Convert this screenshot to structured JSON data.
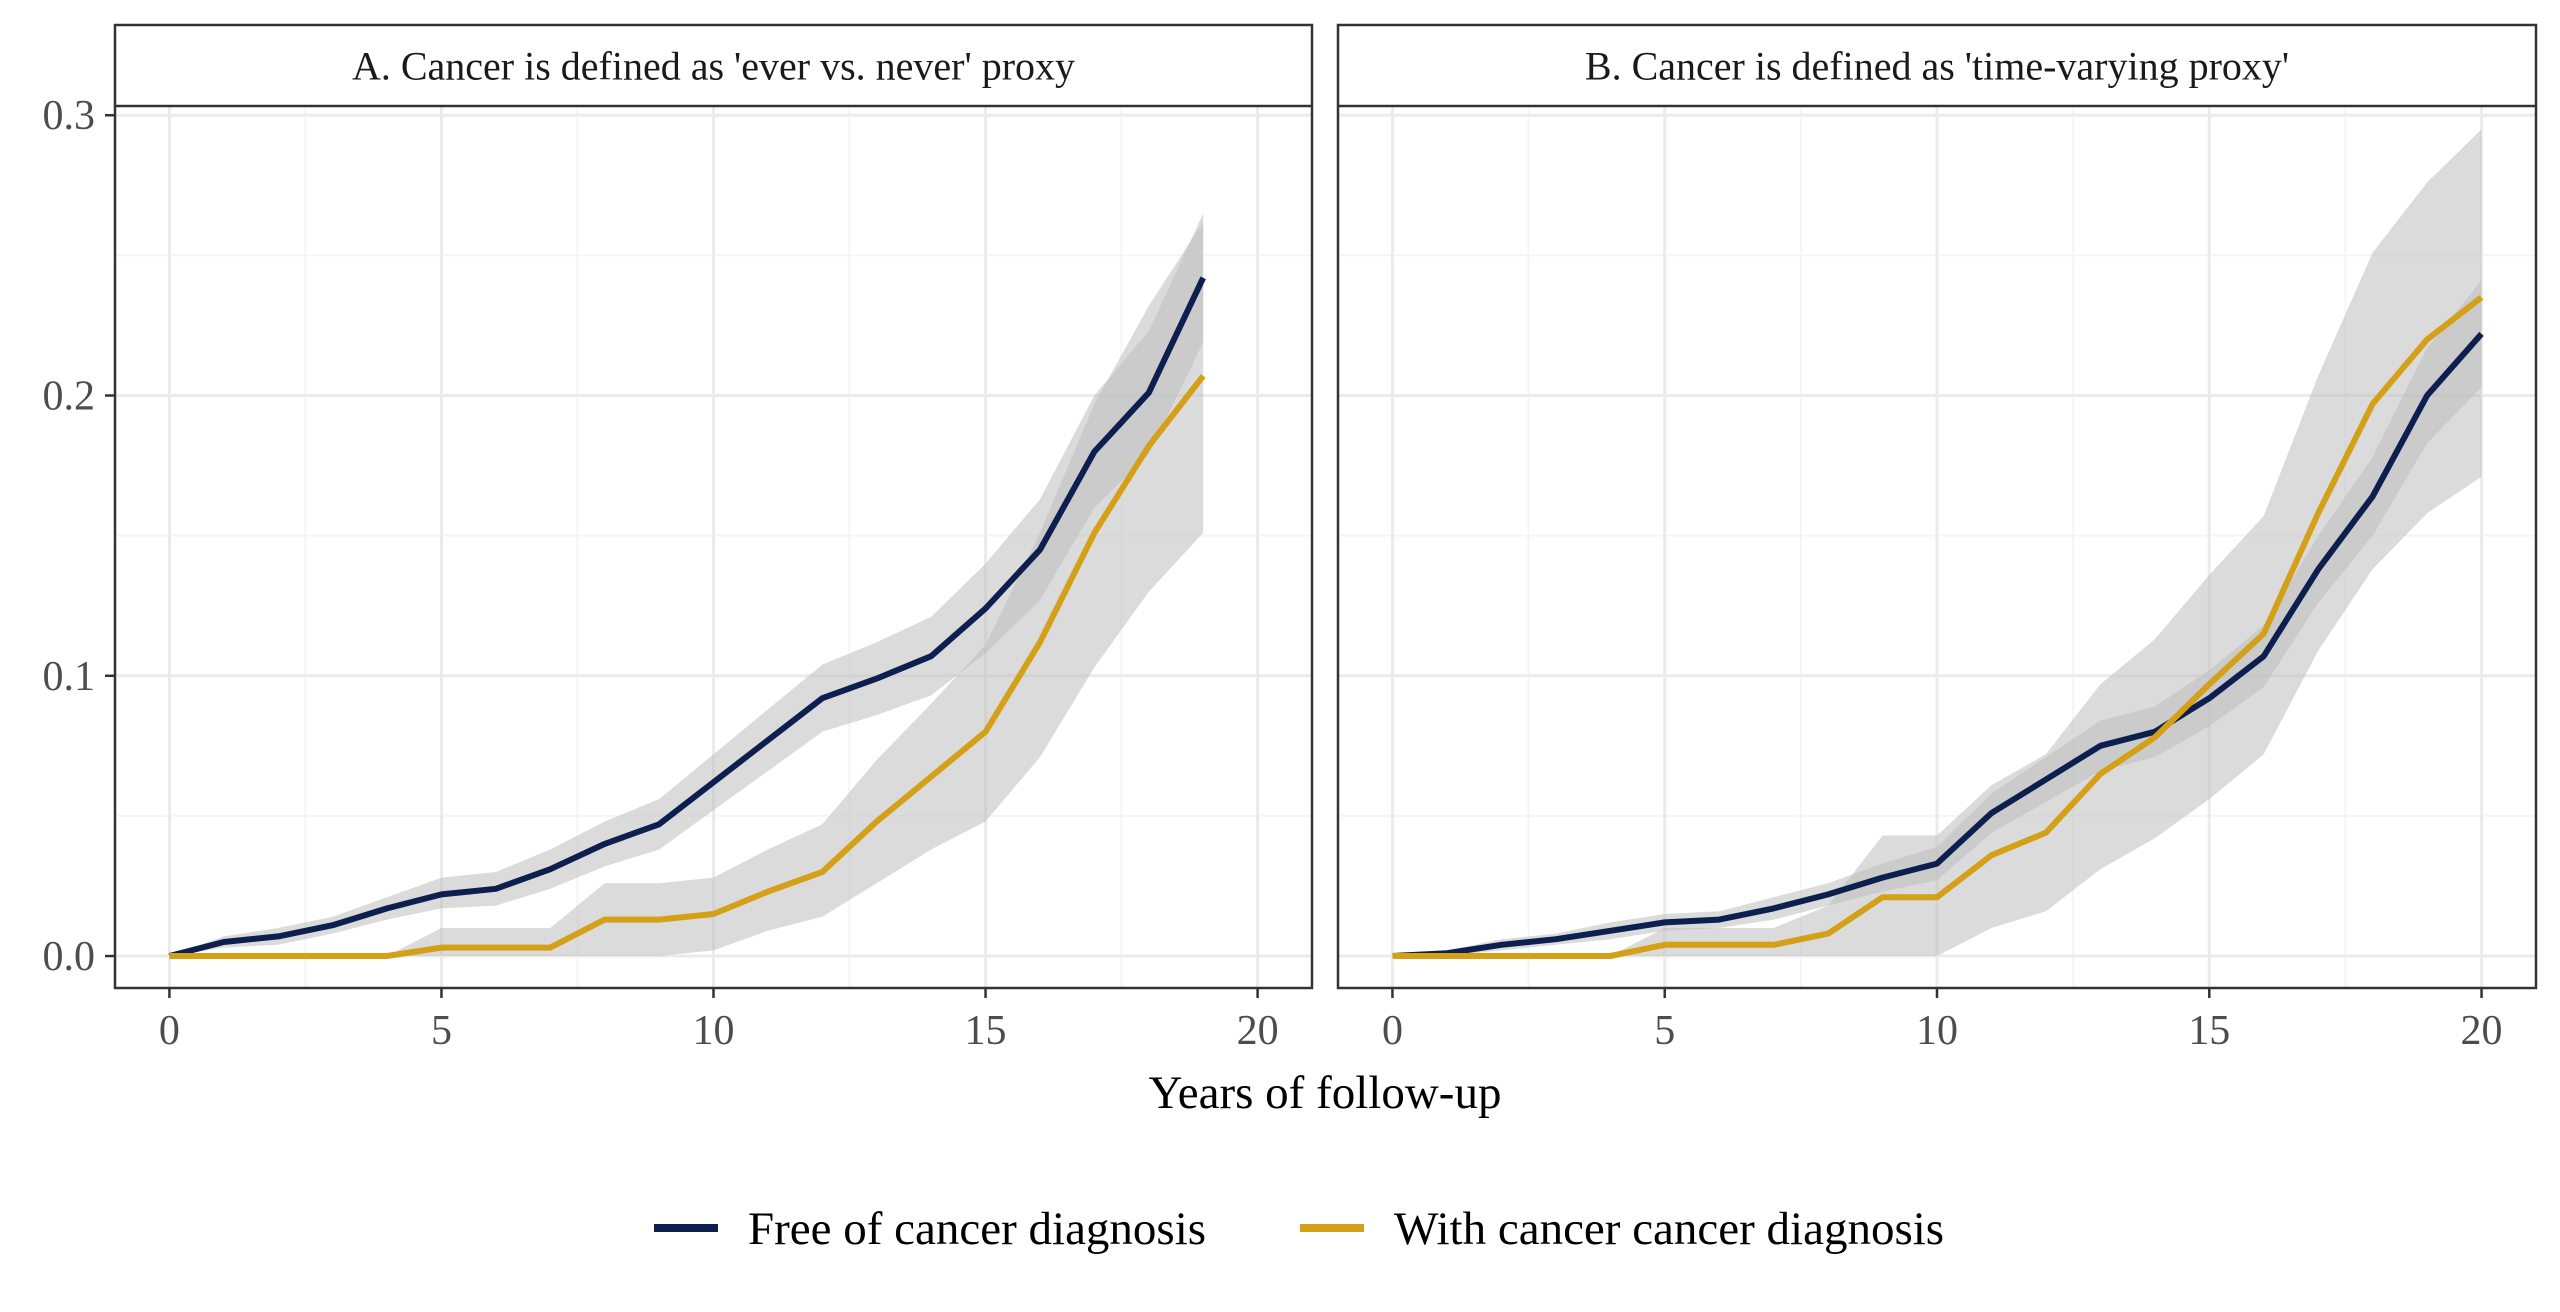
{
  "figure": {
    "xlabel": "Years of follow-up",
    "ylabel": ""
  },
  "legend": {
    "position": "bottom",
    "items": [
      {
        "label": "Free of cancer diagnosis",
        "color": "#0d1f4e"
      },
      {
        "label": "With cancer cancer diagnosis",
        "color": "#d4a017"
      }
    ]
  },
  "colors": {
    "band": "#bdbdbd",
    "grid_major": "#ebebeb",
    "grid_minor": "#f5f5f5",
    "strip_bg": "#ffffff",
    "panel_border": "#333333"
  },
  "chart_data": [
    {
      "type": "line",
      "title": "A. Cancer is defined as 'ever vs. never' proxy",
      "xlim": [
        0,
        20
      ],
      "ylim": [
        0,
        0.3
      ],
      "xticks": [
        "0",
        "5",
        "10",
        "15",
        "20"
      ],
      "yticks": [
        "0.0",
        "0.1",
        "0.2",
        "0.3"
      ],
      "grid": true,
      "series": [
        {
          "name": "Free of cancer diagnosis",
          "x": [
            0,
            1,
            2,
            3,
            4,
            5,
            6,
            7,
            8,
            9,
            10,
            11,
            12,
            13,
            14,
            15,
            16,
            17,
            18,
            19
          ],
          "y": [
            0,
            0.005,
            0.007,
            0.011,
            0.017,
            0.022,
            0.024,
            0.031,
            0.04,
            0.047,
            0.062,
            0.077,
            0.092,
            0.099,
            0.107,
            0.124,
            0.145,
            0.18,
            0.201,
            0.242
          ],
          "lower": [
            0,
            0.003,
            0.004,
            0.008,
            0.013,
            0.017,
            0.018,
            0.024,
            0.032,
            0.038,
            0.052,
            0.066,
            0.08,
            0.086,
            0.093,
            0.108,
            0.127,
            0.16,
            0.179,
            0.219
          ],
          "upper": [
            0,
            0.007,
            0.01,
            0.014,
            0.021,
            0.028,
            0.03,
            0.038,
            0.048,
            0.056,
            0.072,
            0.088,
            0.104,
            0.112,
            0.121,
            0.14,
            0.163,
            0.2,
            0.223,
            0.265
          ]
        },
        {
          "name": "With cancer cancer diagnosis",
          "x": [
            0,
            1,
            2,
            3,
            4,
            5,
            6,
            7,
            8,
            9,
            10,
            11,
            12,
            13,
            14,
            15,
            16,
            17,
            18,
            19
          ],
          "y": [
            0,
            0,
            0,
            0,
            0,
            0.003,
            0.003,
            0.003,
            0.013,
            0.013,
            0.015,
            0.023,
            0.03,
            0.048,
            0.064,
            0.08,
            0.112,
            0.151,
            0.182,
            0.207
          ],
          "lower": [
            0,
            0,
            0,
            0,
            0,
            0,
            0,
            0,
            0,
            0,
            0.002,
            0.009,
            0.014,
            0.026,
            0.038,
            0.048,
            0.071,
            0.103,
            0.13,
            0.151
          ],
          "upper": [
            0,
            0,
            0,
            0,
            0,
            0.01,
            0.01,
            0.01,
            0.026,
            0.026,
            0.028,
            0.038,
            0.047,
            0.07,
            0.09,
            0.111,
            0.151,
            0.197,
            0.232,
            0.262
          ]
        }
      ]
    },
    {
      "type": "line",
      "title": "B. Cancer is defined as 'time-varying proxy'",
      "xlim": [
        0,
        20
      ],
      "ylim": [
        0,
        0.3
      ],
      "xticks": [
        "0",
        "5",
        "10",
        "15",
        "20"
      ],
      "yticks": [
        "0.0",
        "0.1",
        "0.2",
        "0.3"
      ],
      "grid": true,
      "series": [
        {
          "name": "Free of cancer diagnosis",
          "x": [
            0,
            1,
            2,
            3,
            4,
            5,
            6,
            7,
            8,
            9,
            10,
            11,
            12,
            13,
            14,
            15,
            16,
            17,
            18,
            19,
            20
          ],
          "y": [
            0,
            0.001,
            0.004,
            0.006,
            0.009,
            0.012,
            0.013,
            0.017,
            0.022,
            0.028,
            0.033,
            0.051,
            0.063,
            0.075,
            0.08,
            0.092,
            0.107,
            0.138,
            0.164,
            0.2,
            0.222
          ],
          "lower": [
            0,
            0,
            0.002,
            0.004,
            0.006,
            0.009,
            0.01,
            0.013,
            0.018,
            0.023,
            0.027,
            0.044,
            0.055,
            0.066,
            0.071,
            0.082,
            0.096,
            0.126,
            0.15,
            0.183,
            0.203
          ],
          "upper": [
            0,
            0.002,
            0.006,
            0.008,
            0.012,
            0.015,
            0.016,
            0.021,
            0.026,
            0.033,
            0.039,
            0.058,
            0.071,
            0.084,
            0.089,
            0.102,
            0.118,
            0.15,
            0.178,
            0.217,
            0.241
          ]
        },
        {
          "name": "With cancer cancer diagnosis",
          "x": [
            0,
            1,
            2,
            3,
            4,
            5,
            6,
            7,
            8,
            9,
            10,
            11,
            12,
            13,
            14,
            15,
            16,
            17,
            18,
            19,
            20
          ],
          "y": [
            0,
            0,
            0,
            0,
            0,
            0.004,
            0.004,
            0.004,
            0.008,
            0.021,
            0.021,
            0.036,
            0.044,
            0.065,
            0.078,
            0.097,
            0.115,
            0.158,
            0.197,
            0.22,
            0.235
          ],
          "lower": [
            0,
            0,
            0,
            0,
            0,
            0,
            0,
            0,
            0,
            0,
            0,
            0.01,
            0.016,
            0.031,
            0.042,
            0.056,
            0.072,
            0.109,
            0.138,
            0.158,
            0.171
          ],
          "upper": [
            0,
            0,
            0,
            0,
            0,
            0.01,
            0.01,
            0.01,
            0.018,
            0.043,
            0.043,
            0.061,
            0.072,
            0.097,
            0.113,
            0.136,
            0.157,
            0.207,
            0.251,
            0.276,
            0.295
          ]
        }
      ]
    }
  ]
}
